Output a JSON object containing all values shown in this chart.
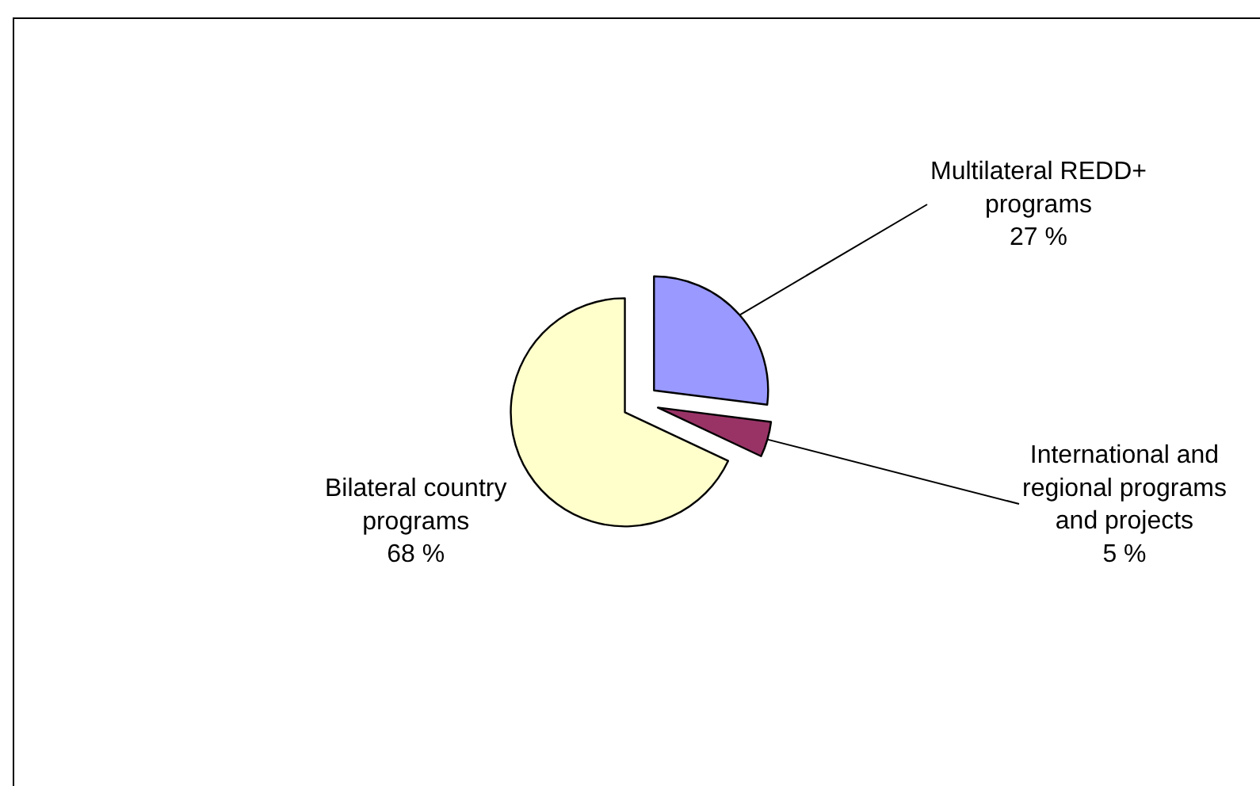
{
  "chart_data": {
    "type": "pie",
    "categories": [
      "Multilateral REDD+ programs",
      "International and regional programs and projects",
      "Bilateral country programs"
    ],
    "values": [
      27,
      5,
      68
    ],
    "colors": [
      "#9999ff",
      "#993366",
      "#ffffcc"
    ],
    "value_labels": [
      "27 %",
      "5 %",
      "68 %"
    ]
  }
}
